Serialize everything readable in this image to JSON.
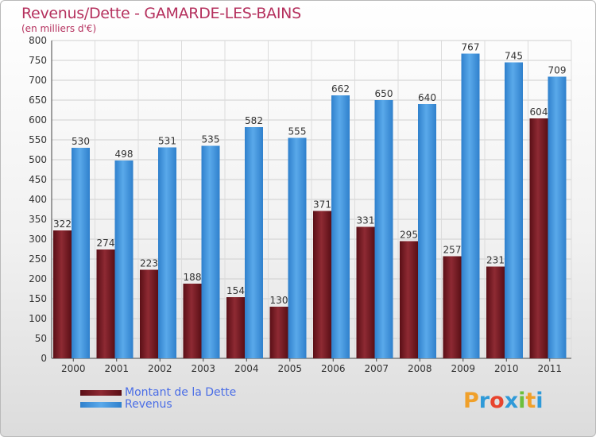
{
  "chart_data": {
    "type": "bar",
    "title": "Revenus/Dette - GAMARDE-LES-BAINS",
    "subtitle": "(en milliers d'€)",
    "categories": [
      "2000",
      "2001",
      "2002",
      "2003",
      "2004",
      "2005",
      "2006",
      "2007",
      "2008",
      "2009",
      "2010",
      "2011"
    ],
    "series": [
      {
        "name": "Montant de la Dette",
        "color": "#7a1a22",
        "values": [
          322,
          274,
          223,
          188,
          154,
          130,
          371,
          331,
          295,
          257,
          231,
          604
        ]
      },
      {
        "name": "Revenus",
        "color": "#4fa0e4",
        "values": [
          530,
          498,
          531,
          535,
          582,
          555,
          662,
          650,
          640,
          767,
          745,
          709
        ]
      }
    ],
    "yticks": [
      0,
      50,
      100,
      150,
      200,
      250,
      300,
      350,
      400,
      450,
      500,
      550,
      600,
      650,
      700,
      750,
      800
    ],
    "ylim": [
      0,
      800
    ],
    "grid": true,
    "legend_position": "bottom-left"
  },
  "logo": {
    "letters": [
      "P",
      "r",
      "o",
      "x",
      "i",
      "t",
      "i"
    ],
    "colors": [
      "#f0a02a",
      "#2f9ad8",
      "#e8442e",
      "#2f9ad8",
      "#6cbf3c",
      "#f0a02a",
      "#2f9ad8"
    ]
  }
}
